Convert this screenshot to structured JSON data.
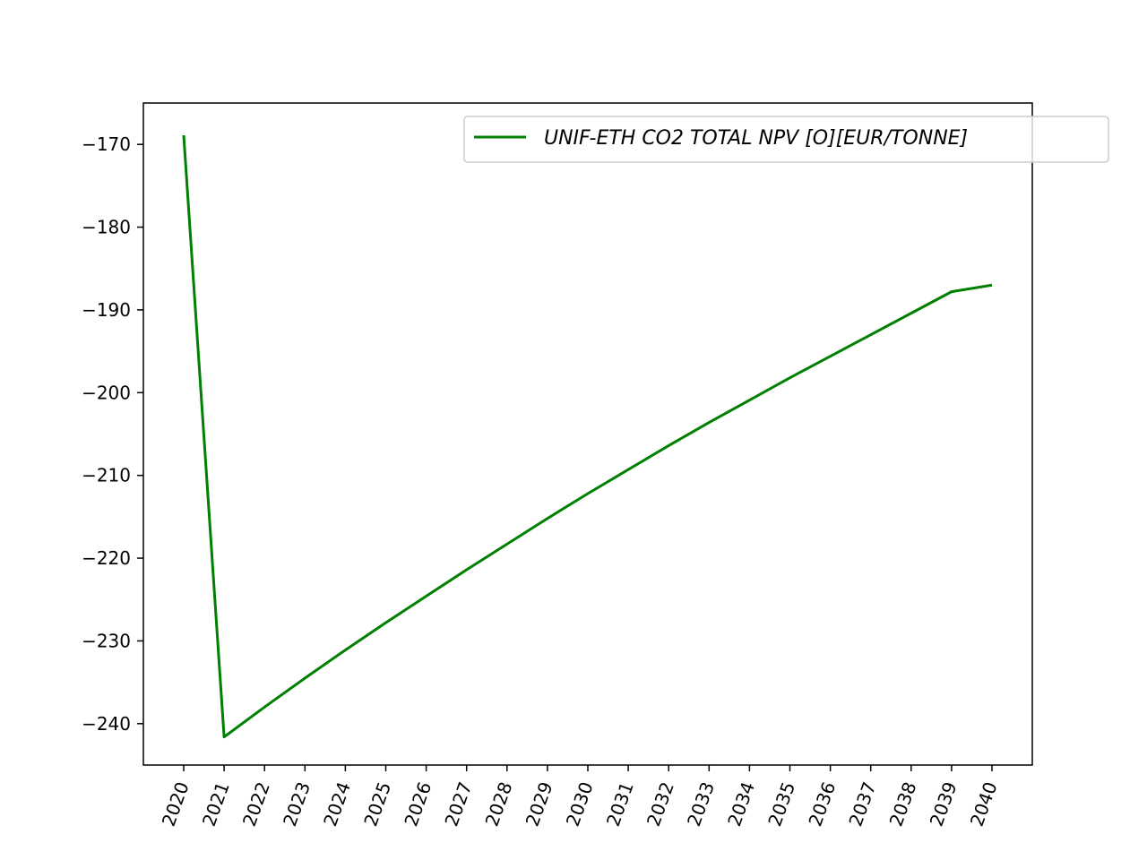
{
  "chart_data": {
    "type": "line",
    "title": "",
    "xlabel": "",
    "ylabel": "",
    "x": [
      "2020",
      "2021",
      "2022",
      "2023",
      "2024",
      "2025",
      "2026",
      "2027",
      "2028",
      "2029",
      "2030",
      "2031",
      "2032",
      "2033",
      "2034",
      "2035",
      "2036",
      "2037",
      "2038",
      "2039",
      "2040"
    ],
    "series": [
      {
        "name": "UNIF-ETH CO2 TOTAL NPV [O][EUR/TONNE]",
        "color": "#008000",
        "values": [
          -168.9,
          -241.6,
          -238.0,
          -234.5,
          -231.1,
          -227.8,
          -224.6,
          -221.4,
          -218.3,
          -215.2,
          -212.2,
          -209.3,
          -206.4,
          -203.6,
          -200.9,
          -198.2,
          -195.6,
          -193.0,
          -190.4,
          -187.8,
          -187.0
        ]
      }
    ],
    "ylim": [
      -245,
      -165
    ],
    "yticks": [
      "−170",
      "−180",
      "−190",
      "−200",
      "−210",
      "−220",
      "−230",
      "−240"
    ],
    "ytick_values": [
      -170,
      -180,
      -190,
      -200,
      -210,
      -220,
      -230,
      -240
    ],
    "xtick_rotation": -70,
    "grid": false,
    "legend": "top-right"
  }
}
